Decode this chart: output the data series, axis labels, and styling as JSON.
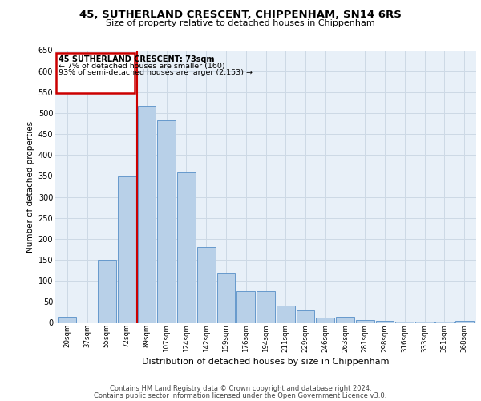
{
  "title1": "45, SUTHERLAND CRESCENT, CHIPPENHAM, SN14 6RS",
  "title2": "Size of property relative to detached houses in Chippenham",
  "xlabel": "Distribution of detached houses by size in Chippenham",
  "ylabel": "Number of detached properties",
  "categories": [
    "20sqm",
    "37sqm",
    "55sqm",
    "72sqm",
    "89sqm",
    "107sqm",
    "124sqm",
    "142sqm",
    "159sqm",
    "176sqm",
    "194sqm",
    "211sqm",
    "229sqm",
    "246sqm",
    "263sqm",
    "281sqm",
    "298sqm",
    "316sqm",
    "333sqm",
    "351sqm",
    "368sqm"
  ],
  "values": [
    15,
    0,
    150,
    348,
    518,
    482,
    358,
    180,
    118,
    76,
    76,
    42,
    30,
    12,
    15,
    7,
    5,
    3,
    2,
    2,
    5
  ],
  "bar_color": "#b8d0e8",
  "bar_edge_color": "#6699cc",
  "annotation_text_line1": "45 SUTHERLAND CRESCENT: 73sqm",
  "annotation_text_line2": "← 7% of detached houses are smaller (160)",
  "annotation_text_line3": "93% of semi-detached houses are larger (2,153) →",
  "red_line_color": "#cc0000",
  "grid_color": "#cdd9e5",
  "bg_color": "#e8f0f8",
  "ylim": [
    0,
    650
  ],
  "yticks": [
    0,
    50,
    100,
    150,
    200,
    250,
    300,
    350,
    400,
    450,
    500,
    550,
    600,
    650
  ],
  "footer1": "Contains HM Land Registry data © Crown copyright and database right 2024.",
  "footer2": "Contains public sector information licensed under the Open Government Licence v3.0."
}
